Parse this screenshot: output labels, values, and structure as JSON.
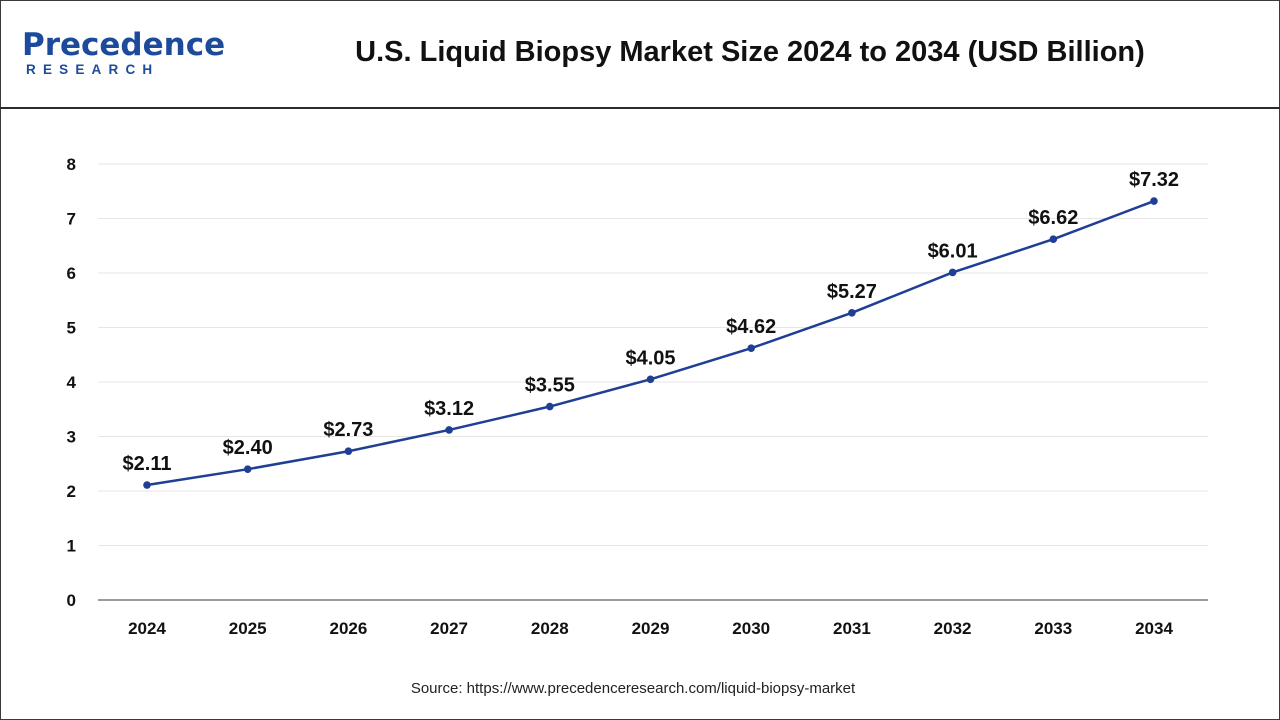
{
  "header": {
    "logo_main": "Precedence",
    "logo_sub": "RESEARCH",
    "title": "U.S. Liquid Biopsy Market Size 2024 to 2034 (USD Billion)"
  },
  "footer": {
    "source": "Source: https://www.precedenceresearch.com/liquid-biopsy-market"
  },
  "colors": {
    "line": "#1f3f94",
    "brand": "#1d4b9c",
    "grid": "#e6e6e6",
    "axis": "#7a7a7a"
  },
  "chart_data": {
    "type": "line",
    "title": "U.S. Liquid Biopsy Market Size 2024 to 2034 (USD Billion)",
    "xlabel": "",
    "ylabel": "",
    "categories": [
      "2024",
      "2025",
      "2026",
      "2027",
      "2028",
      "2029",
      "2030",
      "2031",
      "2032",
      "2033",
      "2034"
    ],
    "series": [
      {
        "values": [
          2.11,
          2.4,
          2.73,
          3.12,
          3.55,
          4.05,
          4.62,
          5.27,
          6.01,
          6.62,
          7.32
        ],
        "labels": [
          "$2.11",
          "$2.40",
          "$2.73",
          "$3.12",
          "$3.55",
          "$4.05",
          "$4.62",
          "$5.27",
          "$6.01",
          "$6.62",
          "$7.32"
        ]
      }
    ],
    "yticks": [
      "0",
      "1",
      "2",
      "3",
      "4",
      "5",
      "6",
      "7",
      "8"
    ],
    "ylim": [
      0,
      8
    ],
    "grid": true,
    "legend": "none"
  }
}
